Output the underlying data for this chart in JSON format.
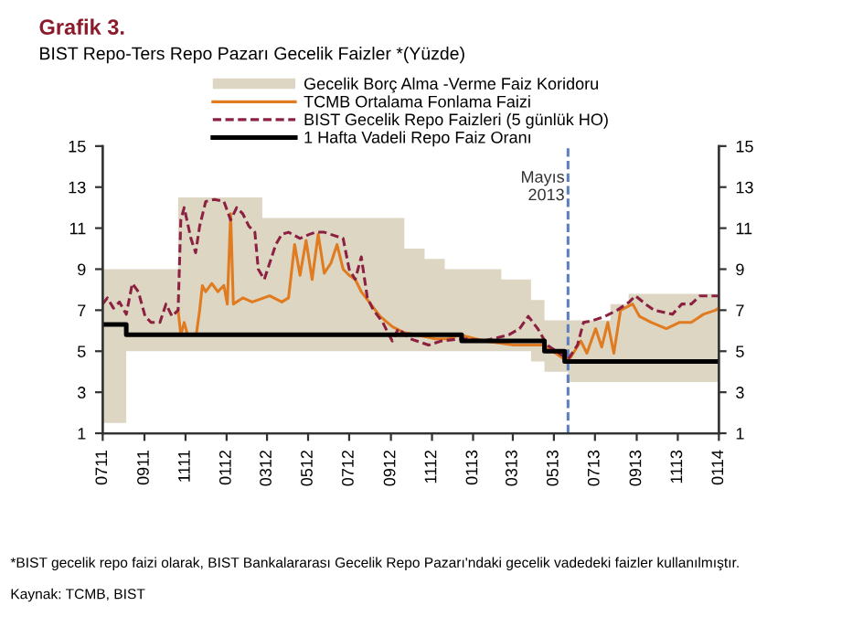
{
  "chart_data": {
    "type": "line",
    "title": "Grafik 3.",
    "subtitle": "BIST Repo-Ters Repo Pazarı Gecelik Faizler *(Yüzde)",
    "annotations": [
      "*BIST gecelik repo faizi olarak, BIST Bankalararası Gecelik Repo Pazarı'ndaki gecelik vadedeki faizler kullanılmıştır.",
      "Kaynak: TCMB, BIST"
    ],
    "xlim": [
      "2011-07-01",
      "2014-01-01"
    ],
    "xticks": [
      {
        "value": "2011-07-01",
        "label": "0711"
      },
      {
        "value": "2011-09-01",
        "label": "0911"
      },
      {
        "value": "2011-11-01",
        "label": "1111"
      },
      {
        "value": "2012-01-01",
        "label": "0112"
      },
      {
        "value": "2012-03-01",
        "label": "0312"
      },
      {
        "value": "2012-05-01",
        "label": "0512"
      },
      {
        "value": "2012-07-01",
        "label": "0712"
      },
      {
        "value": "2012-09-01",
        "label": "0912"
      },
      {
        "value": "2012-11-01",
        "label": "1112"
      },
      {
        "value": "2013-01-01",
        "label": "0113"
      },
      {
        "value": "2013-03-01",
        "label": "0313"
      },
      {
        "value": "2013-05-01",
        "label": "0513"
      },
      {
        "value": "2013-07-01",
        "label": "0713"
      },
      {
        "value": "2013-09-01",
        "label": "0913"
      },
      {
        "value": "2013-11-01",
        "label": "1113"
      },
      {
        "value": "2014-01-01",
        "label": "0114"
      }
    ],
    "ylim": [
      1,
      15
    ],
    "yticks": [
      1,
      3,
      5,
      7,
      9,
      11,
      13,
      15
    ],
    "y2lim": [
      1,
      15
    ],
    "y2ticks": [
      1,
      3,
      5,
      7,
      9,
      11,
      13,
      15
    ],
    "grid": false,
    "legend": "top",
    "ref_lines": [
      {
        "axis": "x",
        "value": "2013-05-22",
        "label": "Mayıs\n2013",
        "color": "#5b7fbf",
        "line_style": "dashed"
      }
    ],
    "series": [
      {
        "name": "Gecelik Borç Alma -Verme Faiz Koridoru",
        "type": "area",
        "color": "#ddd6c3",
        "x": [
          "2011-07-01",
          "2011-08-05",
          "2011-08-05",
          "2011-10-21",
          "2011-10-21",
          "2012-02-23",
          "2012-02-23",
          "2012-09-21",
          "2012-09-21",
          "2012-10-21",
          "2012-10-21",
          "2012-11-20",
          "2012-11-20",
          "2013-02-12",
          "2013-02-12",
          "2013-03-28",
          "2013-03-28",
          "2013-04-17",
          "2013-04-17",
          "2013-05-22",
          "2013-05-22",
          "2013-07-24",
          "2013-07-24",
          "2013-08-20",
          "2013-08-20",
          "2014-01-01"
        ],
        "values": [
          null,
          null,
          null,
          null,
          null,
          null,
          null,
          null,
          null,
          null,
          null,
          null,
          null,
          null,
          null,
          null,
          null,
          null,
          null,
          null,
          null,
          null,
          null,
          null,
          null,
          null
        ],
        "upper": [
          9,
          9,
          9,
          9,
          12.5,
          12.5,
          11.5,
          11.5,
          10,
          10,
          9.5,
          9.5,
          9,
          9,
          8.5,
          8.5,
          7.5,
          7.5,
          6.5,
          6.5,
          6.5,
          6.5,
          7.3,
          7.3,
          7.8,
          7.8
        ],
        "lower": [
          1.5,
          1.5,
          5,
          5,
          5,
          5,
          5,
          5,
          5,
          5,
          5,
          5,
          5,
          5,
          5,
          5,
          4.5,
          4.5,
          4,
          4,
          3.5,
          3.5,
          3.5,
          3.5,
          3.5,
          3.5
        ]
      },
      {
        "name": "TCMB Ortalama Fonlama Faizi",
        "color": "#e07b20",
        "line_style": "solid",
        "x": [
          "2011-10-21",
          "2011-10-25",
          "2011-10-30",
          "2011-11-04",
          "2011-11-17",
          "2011-11-22",
          "2011-11-26",
          "2011-12-01",
          "2011-12-10",
          "2011-12-19",
          "2011-12-28",
          "2012-01-02",
          "2012-01-07",
          "2012-01-11",
          "2012-01-25",
          "2012-02-08",
          "2012-03-05",
          "2012-03-23",
          "2012-04-02",
          "2012-04-11",
          "2012-04-19",
          "2012-04-28",
          "2012-05-07",
          "2012-05-16",
          "2012-05-25",
          "2012-06-04",
          "2012-06-13",
          "2012-06-22",
          "2012-07-01",
          "2012-07-10",
          "2012-07-19",
          "2012-08-02",
          "2012-08-16",
          "2012-09-03",
          "2012-09-21",
          "2012-10-09",
          "2012-11-06",
          "2012-11-24",
          "2012-12-12",
          "2013-01-17",
          "2013-03-02",
          "2013-04-16",
          "2013-05-17",
          "2013-05-26",
          "2013-06-10",
          "2013-06-19",
          "2013-07-02",
          "2013-07-11",
          "2013-07-20",
          "2013-07-29",
          "2013-08-08",
          "2013-08-26",
          "2013-09-05",
          "2013-09-23",
          "2013-10-15",
          "2013-11-03",
          "2013-11-21",
          "2013-12-09",
          "2013-12-27",
          "2014-01-01"
        ],
        "values": [
          7.0,
          5.8,
          6.4,
          5.8,
          5.8,
          7.0,
          8.2,
          7.9,
          8.3,
          7.9,
          8.2,
          7.3,
          11.7,
          7.3,
          7.6,
          7.4,
          7.7,
          7.4,
          7.6,
          10.2,
          8.7,
          10.4,
          8.5,
          10.7,
          8.8,
          9.3,
          10.2,
          9.0,
          8.7,
          8.5,
          7.9,
          7.3,
          6.7,
          6.2,
          5.9,
          5.8,
          5.6,
          5.6,
          5.8,
          5.5,
          5.3,
          5.3,
          4.6,
          4.7,
          5.5,
          4.9,
          6.1,
          5.2,
          6.4,
          4.9,
          7.0,
          7.3,
          6.7,
          6.4,
          6.1,
          6.4,
          6.4,
          6.8,
          7.0,
          7.1
        ]
      },
      {
        "name": "BIST Gecelik Repo Faizleri (5 günlük HO)",
        "color": "#8b2040",
        "line_style": "dashed",
        "x": [
          "2011-07-01",
          "2011-07-08",
          "2011-07-17",
          "2011-07-26",
          "2011-08-05",
          "2011-08-14",
          "2011-08-23",
          "2011-09-02",
          "2011-09-11",
          "2011-09-24",
          "2011-10-03",
          "2011-10-12",
          "2011-10-21",
          "2011-10-25",
          "2011-10-30",
          "2011-11-09",
          "2011-11-16",
          "2011-11-22",
          "2011-12-01",
          "2011-12-14",
          "2011-12-28",
          "2012-01-07",
          "2012-01-16",
          "2012-01-25",
          "2012-02-03",
          "2012-02-12",
          "2012-02-17",
          "2012-02-26",
          "2012-03-05",
          "2012-03-14",
          "2012-03-23",
          "2012-04-02",
          "2012-04-19",
          "2012-05-03",
          "2012-05-12",
          "2012-05-25",
          "2012-06-22",
          "2012-07-01",
          "2012-07-10",
          "2012-07-19",
          "2012-07-28",
          "2012-08-06",
          "2012-08-20",
          "2012-08-29",
          "2012-09-03",
          "2012-09-12",
          "2012-09-30",
          "2012-10-27",
          "2012-11-15",
          "2012-12-12",
          "2012-12-20",
          "2013-01-17",
          "2013-02-23",
          "2013-03-11",
          "2013-03-24",
          "2013-04-07",
          "2013-04-21",
          "2013-05-09",
          "2013-05-22",
          "2013-06-05",
          "2013-06-14",
          "2013-06-28",
          "2013-07-16",
          "2013-08-03",
          "2013-08-21",
          "2013-08-30",
          "2013-09-14",
          "2013-09-27",
          "2013-10-24",
          "2013-11-07",
          "2013-11-21",
          "2013-12-04",
          "2013-12-27",
          "2014-01-01"
        ],
        "values": [
          7.3,
          7.6,
          7.1,
          7.4,
          6.8,
          8.3,
          7.9,
          6.7,
          6.4,
          6.4,
          7.3,
          6.7,
          7.0,
          11.4,
          12.0,
          10.5,
          9.8,
          11.1,
          12.3,
          12.4,
          12.3,
          11.4,
          12.0,
          11.7,
          11.1,
          10.8,
          9.0,
          8.5,
          9.3,
          10.2,
          10.7,
          10.8,
          10.5,
          10.7,
          10.8,
          10.8,
          10.5,
          9.0,
          8.5,
          9.6,
          7.6,
          7.0,
          6.4,
          5.8,
          5.5,
          6.1,
          5.6,
          5.3,
          5.5,
          5.6,
          5.6,
          5.5,
          5.8,
          6.1,
          6.7,
          6.1,
          5.3,
          4.9,
          4.6,
          5.3,
          6.4,
          6.5,
          6.7,
          7.0,
          7.4,
          7.7,
          7.3,
          7.0,
          6.8,
          7.3,
          7.3,
          7.7,
          7.7,
          7.7
        ]
      },
      {
        "name": "1 Hafta Vadeli Repo Faiz Oranı",
        "type": "step",
        "color": "#000000",
        "line_style": "solid",
        "x": [
          "2011-07-01",
          "2011-08-05",
          "2012-12-15",
          "2013-04-17",
          "2013-05-17",
          "2014-01-01"
        ],
        "values": [
          6.3,
          5.8,
          5.5,
          5.0,
          4.5,
          4.5
        ]
      }
    ]
  }
}
